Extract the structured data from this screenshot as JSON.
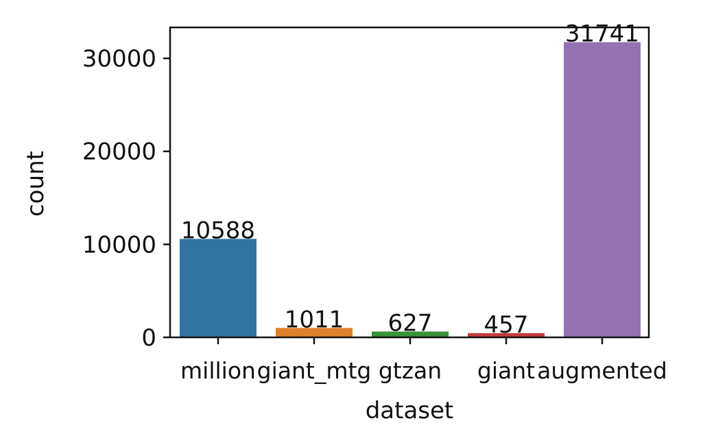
{
  "chart_data": {
    "type": "bar",
    "xlabel": "dataset",
    "ylabel": "count",
    "categories": [
      "million",
      "giant_mtg",
      "gtzan",
      "giant",
      "augmented"
    ],
    "values": [
      10588,
      1011,
      627,
      457,
      31741
    ],
    "data_labels": [
      "10588",
      "1011",
      "627",
      "457",
      "31741"
    ],
    "colors": [
      "#3274a1",
      "#e1812c",
      "#3a923a",
      "#c03d3e",
      "#9372b2"
    ],
    "ylim": [
      0,
      33327
    ],
    "yticks": [
      0,
      10000,
      20000,
      30000
    ],
    "ytick_labels": [
      "0",
      "10000",
      "20000",
      "30000"
    ],
    "grid": false,
    "legend": "none"
  }
}
